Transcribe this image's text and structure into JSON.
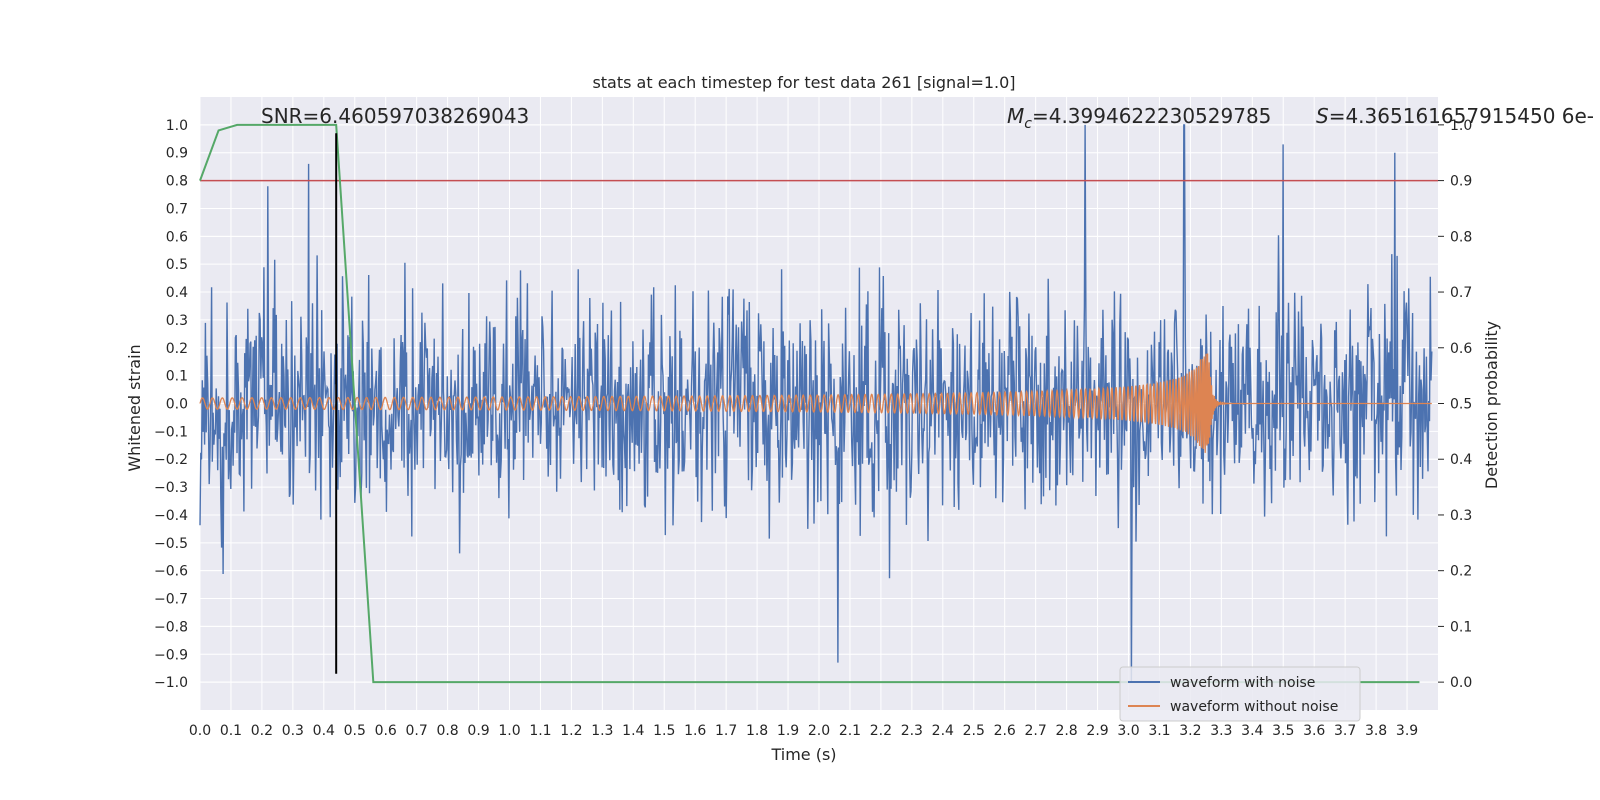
{
  "chart_data": {
    "type": "line",
    "title": "stats at each timestep for test data 261 [signal=1.0]",
    "xlabel": "Time (s)",
    "ylabel": "Whitened strain",
    "y2label": "Detection probability",
    "xlim": [
      0.0,
      4.0
    ],
    "ylim": [
      -1.1,
      1.1
    ],
    "y2lim": [
      -0.05,
      1.05
    ],
    "xticks": [
      0.0,
      0.1,
      0.2,
      0.3,
      0.4,
      0.5,
      0.6,
      0.7,
      0.8,
      0.9,
      1.0,
      1.1,
      1.2,
      1.3,
      1.4,
      1.5,
      1.6,
      1.7,
      1.8,
      1.9,
      2.0,
      2.1,
      2.2,
      2.3,
      2.4,
      2.5,
      2.6,
      2.7,
      2.8,
      2.9,
      3.0,
      3.1,
      3.2,
      3.3,
      3.4,
      3.5,
      3.6,
      3.7,
      3.8,
      3.9
    ],
    "xtick_labels": [
      "0.0",
      "0.1",
      "0.2",
      "0.3",
      "0.4",
      "0.5",
      "0.6",
      "0.7",
      "0.8",
      "0.9",
      "1.0",
      "1.1",
      "1.2",
      "1.3",
      "1.4",
      "1.5",
      "1.6",
      "1.7",
      "1.8",
      "1.9",
      "2.0",
      "2.1",
      "2.2",
      "2.3",
      "2.4",
      "2.5",
      "2.6",
      "2.7",
      "2.8",
      "2.9",
      "3.0",
      "3.1",
      "3.2",
      "3.3",
      "3.4",
      "3.5",
      "3.6",
      "3.7",
      "3.8",
      "3.9"
    ],
    "yticks": [
      1.0,
      0.9,
      0.8,
      0.7,
      0.6,
      0.5,
      0.4,
      0.3,
      0.2,
      0.1,
      0.0,
      -0.1,
      -0.2,
      -0.3,
      -0.4,
      -0.5,
      -0.6,
      -0.7,
      -0.8,
      -0.9,
      -1.0
    ],
    "ytick_labels": [
      "1.0",
      "0.9",
      "0.8",
      "0.7",
      "0.6",
      "0.5",
      "0.4",
      "0.3",
      "0.2",
      "0.1",
      "0.0",
      "−0.1",
      "−0.2",
      "−0.3",
      "−0.4",
      "−0.5",
      "−0.6",
      "−0.7",
      "−0.8",
      "−0.9",
      "−1.0"
    ],
    "y2ticks": [
      1.0,
      0.9,
      0.8,
      0.7,
      0.6,
      0.5,
      0.4,
      0.3,
      0.2,
      0.1,
      0.0
    ],
    "y2tick_labels": [
      "1.0",
      "0.9",
      "0.8",
      "0.7",
      "0.6",
      "0.5",
      "0.4",
      "0.3",
      "0.2",
      "0.1",
      "0.0"
    ],
    "annotations": {
      "snr": "SNR=6.460597038269043",
      "mc_symbol": "M",
      "mc_sub": "c",
      "mc_value": "=4.3994622230529785",
      "s_symbol": "S",
      "s_value": "=4.365161657915450 6e-"
    },
    "legend": [
      "waveform with noise",
      "waveform without noise"
    ],
    "legend_position": "lower right",
    "colors": {
      "noise": "#4c72b0",
      "clean": "#dd8452",
      "probability": "#55a868",
      "threshold": "#c44e52",
      "marker": "#000000",
      "axes_bg": "#eaeaf2",
      "grid": "#ffffff"
    },
    "series": [
      {
        "name": "waveform with noise",
        "description": "whitened strain with noise, approx. +/-0.5 typical, peaks reaching about 1.0 and -0.93",
        "peaks_x": [
          0.22,
          0.35,
          2.06,
          2.86,
          3.01,
          3.18,
          3.5,
          3.86
        ],
        "peaks_y": [
          0.78,
          0.86,
          -0.93,
          1.0,
          -1.0,
          1.0,
          0.93,
          0.9
        ]
      },
      {
        "name": "waveform without noise",
        "description": "chirp signal, amplitude rising to merger",
        "amplitude_start": 0.02,
        "merger_time": 3.26,
        "merger_peak": 0.2,
        "merger_trough": -0.16
      },
      {
        "name": "detection probability",
        "axis": "y2",
        "x": [
          0.0,
          0.06,
          0.12,
          0.44,
          0.56,
          3.94
        ],
        "y": [
          0.9,
          0.99,
          1.0,
          1.0,
          0.0,
          0.0
        ]
      }
    ],
    "threshold_y2": 0.9,
    "marker_x": 0.44,
    "marker_y_range": [
      -0.97,
      0.97
    ]
  }
}
